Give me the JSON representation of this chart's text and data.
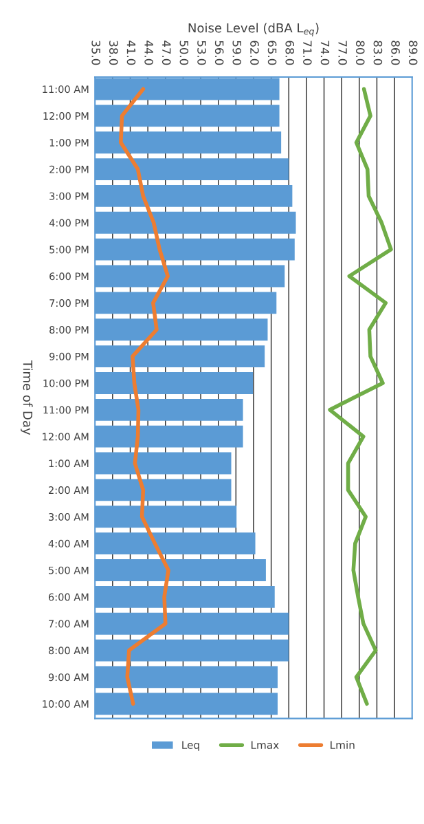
{
  "chart_data": {
    "type": "bar",
    "orientation": "horizontal",
    "xlabel": "Noise Level (dBA L$_{eq}$)",
    "ylabel": "Time of Day",
    "categories": [
      "11:00 AM",
      "12:00 PM",
      "1:00 PM",
      "2:00 PM",
      "3:00 PM",
      "4:00 PM",
      "5:00 PM",
      "6:00 PM",
      "7:00 PM",
      "8:00 PM",
      "9:00 PM",
      "10:00 PM",
      "11:00 PM",
      "12:00 AM",
      "1:00 AM",
      "2:00 AM",
      "3:00 AM",
      "4:00 AM",
      "5:00 AM",
      "6:00 AM",
      "7:00 AM",
      "8:00 AM",
      "9:00 AM",
      "10:00 AM"
    ],
    "series": [
      {
        "name": "Leq",
        "color": "#5b9bd5",
        "values": [
          66.4,
          66.4,
          66.7,
          68.0,
          68.6,
          69.2,
          69.0,
          67.3,
          65.9,
          64.4,
          63.9,
          61.9,
          60.2,
          60.2,
          58.2,
          58.2,
          59.1,
          62.3,
          64.1,
          65.6,
          68.0,
          68.0,
          66.1,
          66.1
        ]
      },
      {
        "name": "Lmax",
        "type": "line",
        "color": "#70ad47",
        "values": [
          80.8,
          81.9,
          79.5,
          81.4,
          81.6,
          83.8,
          85.4,
          78.3,
          84.5,
          81.7,
          81.9,
          84.0,
          75.0,
          80.7,
          78.1,
          78.1,
          81.1,
          79.3,
          79.0,
          79.8,
          80.7,
          82.8,
          79.5,
          81.3
        ]
      },
      {
        "name": "Lmin",
        "type": "line",
        "color": "#ed7d31",
        "values": [
          43.2,
          39.6,
          39.4,
          42.3,
          43.2,
          45.0,
          46.0,
          47.4,
          44.9,
          45.5,
          41.4,
          41.7,
          42.4,
          42.3,
          41.8,
          43.2,
          43.0,
          45.2,
          47.5,
          46.8,
          47.0,
          40.8,
          40.5,
          41.5
        ]
      }
    ],
    "xlim": [
      35,
      89
    ],
    "xticks": [
      {
        "value": 35,
        "label": "35.0"
      },
      {
        "value": 38,
        "label": "38.0"
      },
      {
        "value": 41,
        "label": "41.0"
      },
      {
        "value": 44,
        "label": "44.0"
      },
      {
        "value": 47,
        "label": "47.0"
      },
      {
        "value": 50,
        "label": "50.0"
      },
      {
        "value": 53,
        "label": "53.0"
      },
      {
        "value": 56,
        "label": "56.0"
      },
      {
        "value": 59,
        "label": "59.0"
      },
      {
        "value": 62,
        "label": "62.0"
      },
      {
        "value": 65,
        "label": "65.0"
      },
      {
        "value": 68,
        "label": "68.0"
      },
      {
        "value": 71,
        "label": "71.0"
      },
      {
        "value": 74,
        "label": "74.0"
      },
      {
        "value": 77,
        "label": "77.0"
      },
      {
        "value": 80,
        "label": "80.0"
      },
      {
        "value": 83,
        "label": "83.0"
      },
      {
        "value": 86,
        "label": "86.0"
      },
      {
        "value": 89,
        "label": "89.0"
      }
    ],
    "grid": "x",
    "legend": "bottom",
    "marker": "none",
    "line_style": "solid"
  }
}
